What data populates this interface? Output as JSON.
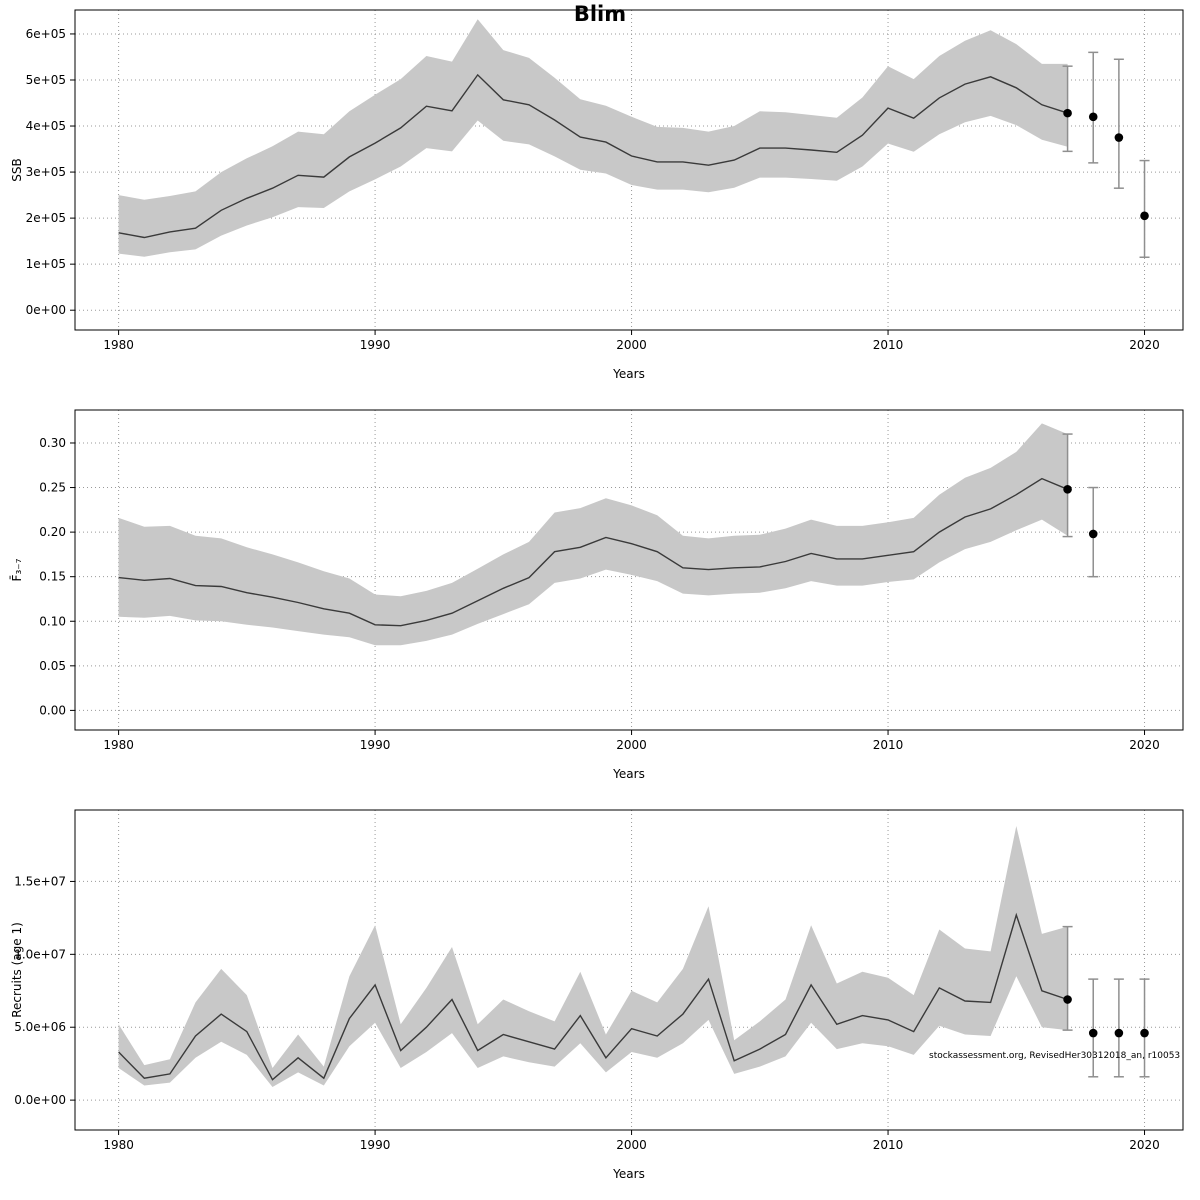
{
  "title": "Blim",
  "footer_annotation": "stockassessment.org, RevisedHer30312018_an, r10053",
  "colors": {
    "line": "#3a3a3a",
    "band": "#c8c8c8",
    "point": "#000000",
    "errorbar": "#8f8f8f",
    "grid": "#999999",
    "axis": "#000000"
  },
  "chart_data": [
    {
      "name": "ssb",
      "type": "line",
      "title": "Blim",
      "xlabel": "Years",
      "ylabel": "SSB",
      "grid": true,
      "legend": "none",
      "xlim": [
        1978.3,
        2021.5
      ],
      "ylim": [
        -43000,
        652000
      ],
      "xticks": [
        1980,
        1990,
        2000,
        2010,
        2020
      ],
      "yticks": [
        0,
        100000,
        200000,
        300000,
        400000,
        500000,
        600000
      ],
      "ytick_labels": [
        "0e+00",
        "1e+05",
        "2e+05",
        "3e+05",
        "4e+05",
        "5e+05",
        "6e+05"
      ],
      "years": [
        1980,
        1981,
        1982,
        1983,
        1984,
        1985,
        1986,
        1987,
        1988,
        1989,
        1990,
        1991,
        1992,
        1993,
        1994,
        1995,
        1996,
        1997,
        1998,
        1999,
        2000,
        2001,
        2002,
        2003,
        2004,
        2005,
        2006,
        2007,
        2008,
        2009,
        2010,
        2011,
        2012,
        2013,
        2014,
        2015,
        2016,
        2017
      ],
      "values": [
        168000,
        158000,
        170000,
        178000,
        217000,
        243000,
        265000,
        293000,
        289000,
        333000,
        363000,
        396000,
        443000,
        433000,
        511000,
        457000,
        446000,
        413000,
        376000,
        365000,
        335000,
        322000,
        322000,
        315000,
        326000,
        352000,
        352000,
        348000,
        343000,
        380000,
        439000,
        417000,
        461000,
        491000,
        507000,
        483000,
        446000,
        428000
      ],
      "lower": [
        123000,
        116000,
        126000,
        132000,
        162000,
        184000,
        202000,
        224000,
        222000,
        258000,
        284000,
        312000,
        352000,
        345000,
        412000,
        368000,
        360000,
        334000,
        305000,
        297000,
        272000,
        262000,
        262000,
        256000,
        266000,
        288000,
        288000,
        285000,
        281000,
        312000,
        362000,
        344000,
        382000,
        408000,
        422000,
        402000,
        370000,
        355000
      ],
      "upper": [
        250000,
        240000,
        248000,
        258000,
        300000,
        330000,
        356000,
        388000,
        382000,
        432000,
        468000,
        502000,
        552000,
        540000,
        632000,
        565000,
        548000,
        505000,
        458000,
        444000,
        420000,
        398000,
        396000,
        388000,
        400000,
        432000,
        430000,
        424000,
        418000,
        462000,
        530000,
        502000,
        552000,
        585000,
        608000,
        578000,
        535000,
        535000
      ],
      "forecast": {
        "years": [
          2017,
          2018,
          2019,
          2020
        ],
        "values": [
          428000,
          420000,
          375000,
          205000
        ],
        "lower": [
          345000,
          320000,
          265000,
          115000
        ],
        "upper": [
          530000,
          560000,
          545000,
          325000
        ]
      }
    },
    {
      "name": "fbar",
      "type": "line",
      "title": "",
      "xlabel": "Years",
      "ylabel": "F̄₃₋₇",
      "grid": true,
      "legend": "none",
      "xlim": [
        1978.3,
        2021.5
      ],
      "ylim": [
        -0.022,
        0.337
      ],
      "xticks": [
        1980,
        1990,
        2000,
        2010,
        2020
      ],
      "yticks": [
        0.0,
        0.05,
        0.1,
        0.15,
        0.2,
        0.25,
        0.3
      ],
      "ytick_labels": [
        "0.00",
        "0.05",
        "0.10",
        "0.15",
        "0.20",
        "0.25",
        "0.30"
      ],
      "years": [
        1980,
        1981,
        1982,
        1983,
        1984,
        1985,
        1986,
        1987,
        1988,
        1989,
        1990,
        1991,
        1992,
        1993,
        1994,
        1995,
        1996,
        1997,
        1998,
        1999,
        2000,
        2001,
        2002,
        2003,
        2004,
        2005,
        2006,
        2007,
        2008,
        2009,
        2010,
        2011,
        2012,
        2013,
        2014,
        2015,
        2016,
        2017
      ],
      "values": [
        0.149,
        0.146,
        0.148,
        0.14,
        0.139,
        0.132,
        0.127,
        0.121,
        0.114,
        0.109,
        0.096,
        0.095,
        0.101,
        0.109,
        0.123,
        0.137,
        0.149,
        0.178,
        0.183,
        0.194,
        0.187,
        0.178,
        0.16,
        0.158,
        0.16,
        0.161,
        0.167,
        0.176,
        0.17,
        0.17,
        0.174,
        0.178,
        0.2,
        0.217,
        0.226,
        0.242,
        0.26,
        0.248
      ],
      "lower": [
        0.105,
        0.104,
        0.106,
        0.101,
        0.1,
        0.096,
        0.093,
        0.089,
        0.085,
        0.082,
        0.073,
        0.073,
        0.078,
        0.085,
        0.097,
        0.108,
        0.119,
        0.143,
        0.148,
        0.158,
        0.152,
        0.145,
        0.131,
        0.129,
        0.131,
        0.132,
        0.137,
        0.145,
        0.14,
        0.14,
        0.144,
        0.147,
        0.166,
        0.181,
        0.189,
        0.202,
        0.214,
        0.196
      ],
      "upper": [
        0.216,
        0.206,
        0.207,
        0.196,
        0.193,
        0.183,
        0.175,
        0.166,
        0.156,
        0.148,
        0.13,
        0.128,
        0.134,
        0.143,
        0.159,
        0.175,
        0.189,
        0.222,
        0.227,
        0.238,
        0.23,
        0.219,
        0.196,
        0.193,
        0.196,
        0.197,
        0.204,
        0.214,
        0.207,
        0.207,
        0.211,
        0.216,
        0.242,
        0.261,
        0.272,
        0.29,
        0.322,
        0.31
      ],
      "forecast": {
        "years": [
          2017,
          2018
        ],
        "values": [
          0.248,
          0.198
        ],
        "lower": [
          0.195,
          0.15
        ],
        "upper": [
          0.31,
          0.25
        ]
      }
    },
    {
      "name": "rec",
      "type": "line",
      "title": "",
      "xlabel": "Years",
      "ylabel": "Recruits (age 1)",
      "grid": true,
      "legend": "none",
      "xlim": [
        1978.3,
        2021.5
      ],
      "ylim": [
        -2050000,
        19900000
      ],
      "xticks": [
        1980,
        1990,
        2000,
        2010,
        2020
      ],
      "yticks": [
        0,
        5000000,
        10000000,
        15000000
      ],
      "ytick_labels": [
        "0.0e+00",
        "5.0e+06",
        "1.0e+07",
        "1.5e+07"
      ],
      "years": [
        1980,
        1981,
        1982,
        1983,
        1984,
        1985,
        1986,
        1987,
        1988,
        1989,
        1990,
        1991,
        1992,
        1993,
        1994,
        1995,
        1996,
        1997,
        1998,
        1999,
        2000,
        2001,
        2002,
        2003,
        2004,
        2005,
        2006,
        2007,
        2008,
        2009,
        2010,
        2011,
        2012,
        2013,
        2014,
        2015,
        2016,
        2017
      ],
      "values": [
        3300000,
        1500000,
        1800000,
        4400000,
        5900000,
        4700000,
        1400000,
        2900000,
        1500000,
        5600000,
        7900000,
        3400000,
        5000000,
        6900000,
        3400000,
        4500000,
        4000000,
        3500000,
        5800000,
        2900000,
        4900000,
        4400000,
        5900000,
        8300000,
        2700000,
        3500000,
        4500000,
        7900000,
        5200000,
        5800000,
        5500000,
        4700000,
        7700000,
        6800000,
        6700000,
        12700000,
        7500000,
        6900000
      ],
      "lower": [
        2200000,
        1000000,
        1200000,
        2900000,
        4000000,
        3100000,
        900000,
        1900000,
        1000000,
        3700000,
        5300000,
        2200000,
        3300000,
        4600000,
        2200000,
        3000000,
        2600000,
        2300000,
        3900000,
        1900000,
        3300000,
        2900000,
        3900000,
        5500000,
        1800000,
        2300000,
        3000000,
        5300000,
        3500000,
        3900000,
        3700000,
        3100000,
        5100000,
        4500000,
        4400000,
        8500000,
        5000000,
        4800000
      ],
      "upper": [
        5200000,
        2400000,
        2800000,
        6700000,
        9000000,
        7200000,
        2200000,
        4500000,
        2300000,
        8500000,
        12000000,
        5200000,
        7700000,
        10500000,
        5200000,
        6900000,
        6100000,
        5400000,
        8800000,
        4500000,
        7500000,
        6700000,
        9000000,
        13300000,
        4100000,
        5400000,
        6900000,
        12000000,
        8000000,
        8800000,
        8400000,
        7200000,
        11700000,
        10400000,
        10200000,
        18800000,
        11400000,
        11900000
      ],
      "forecast": {
        "years": [
          2017,
          2018,
          2019,
          2020
        ],
        "values": [
          6900000,
          4600000,
          4600000,
          4600000
        ],
        "lower": [
          4800000,
          1600000,
          1600000,
          1600000
        ],
        "upper": [
          11900000,
          8300000,
          8300000,
          8300000
        ]
      }
    }
  ]
}
